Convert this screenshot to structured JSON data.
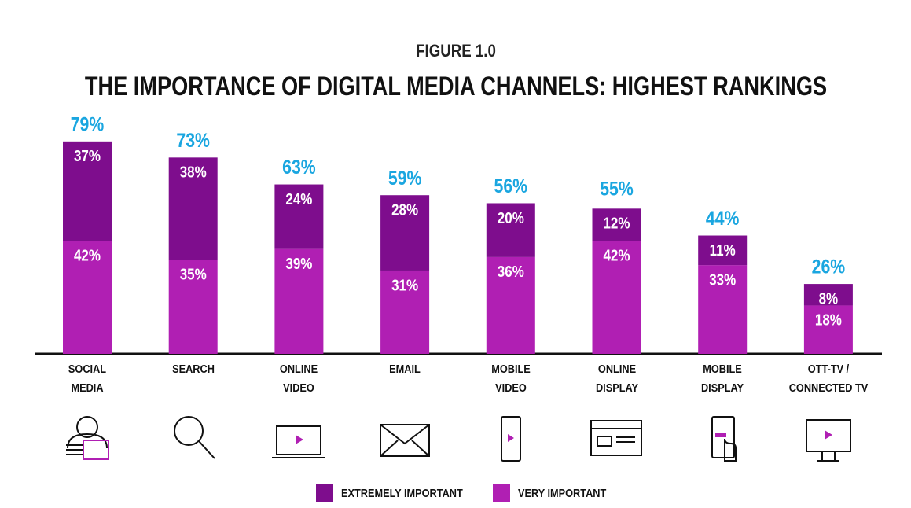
{
  "chart_data": {
    "type": "bar",
    "stacked": true,
    "subtitle": "FIGURE 1.0",
    "title": "THE IMPORTANCE OF DIGITAL MEDIA CHANNELS: HIGHEST RANKINGS",
    "categories": [
      "SOCIAL\nMEDIA",
      "SEARCH",
      "ONLINE\nVIDEO",
      "EMAIL",
      "MOBILE\nVIDEO",
      "ONLINE\nDISPLAY",
      "MOBILE\nDISPLAY",
      "OTT-TV /\nCONNECTED TV"
    ],
    "series": [
      {
        "name": "VERY IMPORTANT",
        "color": "#b01fb3",
        "values": [
          42,
          35,
          39,
          31,
          36,
          42,
          33,
          18
        ],
        "value_labels": [
          "42%",
          "35%",
          "39%",
          "31%",
          "36%",
          "42%",
          "33%",
          "18%"
        ]
      },
      {
        "name": "EXTREMELY IMPORTANT",
        "color": "#7e0d8d",
        "values": [
          37,
          38,
          24,
          28,
          20,
          12,
          11,
          8
        ],
        "value_labels": [
          "37%",
          "38%",
          "24%",
          "28%",
          "20%",
          "12%",
          "11%",
          "8%"
        ]
      }
    ],
    "totals": [
      79,
      73,
      63,
      59,
      56,
      55,
      44,
      26
    ],
    "total_labels": [
      "79%",
      "73%",
      "63%",
      "59%",
      "56%",
      "55%",
      "44%",
      "26%"
    ],
    "total_color": "#1aa6e0"
  }
}
